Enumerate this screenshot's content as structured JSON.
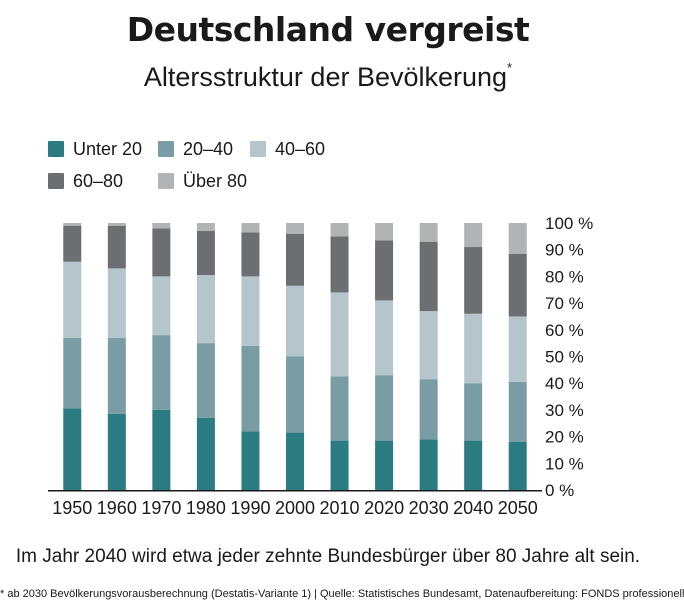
{
  "title": "Deutschland vergreist",
  "subtitle": "Altersstruktur der Bevölkerung",
  "subtitle_marker": "*",
  "caption": "Im Jahr 2040 wird etwa jeder zehnte Bundesbürger über 80 Jahre alt sein.",
  "footnote": "* ab 2030 Bevölkerungsvorausberechnung (Destatis-Variante 1) | Quelle: Statistisches Bundesamt, Datenaufbereitung: FONDS professionell",
  "chart_data": {
    "type": "bar",
    "stacked": true,
    "title": "Deutschland vergreist",
    "subtitle": "Altersstruktur der Bevölkerung*",
    "xlabel": "",
    "ylabel": "",
    "ylim": [
      0,
      100
    ],
    "y_ticks": [
      "0 %",
      "10 %",
      "20 %",
      "30 %",
      "40 %",
      "50 %",
      "60 %",
      "70 %",
      "80 %",
      "90 %",
      "100 %"
    ],
    "y_axis_position": "right",
    "legend_position": "top-left",
    "grid": false,
    "categories": [
      "1950",
      "1960",
      "1970",
      "1980",
      "1990",
      "2000",
      "2010",
      "2020",
      "2030",
      "2040",
      "2050"
    ],
    "series": [
      {
        "name": "Unter 20",
        "color": "#2b7b82",
        "values": [
          30.5,
          28.5,
          30,
          27,
          22,
          21.5,
          18.5,
          18.5,
          19,
          18.5,
          18
        ]
      },
      {
        "name": "20–40",
        "color": "#7a9da5",
        "values": [
          26.5,
          28.5,
          28,
          28,
          32,
          28.5,
          24,
          24.5,
          22.5,
          21.5,
          22.5
        ]
      },
      {
        "name": "40–60",
        "color": "#b4c6cb",
        "values": [
          28.5,
          26,
          22,
          25.5,
          26,
          26.5,
          31.5,
          28,
          25.5,
          26,
          24.5
        ]
      },
      {
        "name": "60–80",
        "color": "#6d6e71",
        "values": [
          13.5,
          16,
          18,
          16.5,
          16.5,
          19.5,
          21,
          22.5,
          26,
          25,
          23.5
        ]
      },
      {
        "name": "Über 80",
        "color": "#b2b3b5",
        "values": [
          1,
          1,
          2,
          3,
          3.5,
          4,
          5,
          6.5,
          7,
          9,
          11.5
        ]
      }
    ]
  }
}
